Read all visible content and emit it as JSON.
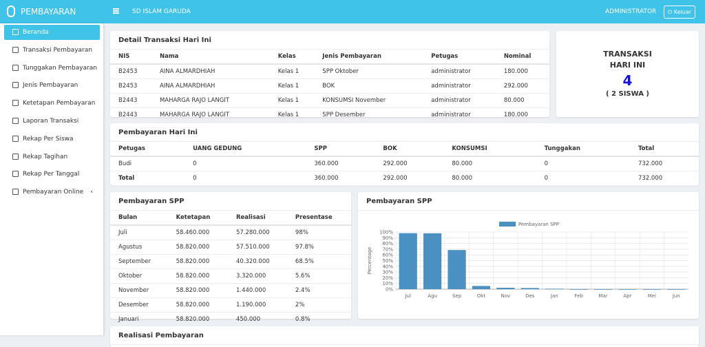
{
  "header": {
    "brand": "PEMBAYARAN",
    "school": "SD ISLAM GARUDA",
    "user": "ADMINISTRATOR",
    "logout": "Keluar"
  },
  "sidebar": {
    "menu": [
      "Beranda",
      "Transaksi Pembayaran",
      "Tunggakan Pembayaran",
      "Jenis Pembayaran",
      "Ketetapan Pembayaran",
      "Laporan Transaksi",
      "Rekap Per Siswa",
      "Rekap Tagihan",
      "Rekap Per Tanggal",
      "Pembayaran Online"
    ]
  },
  "transaksi": {
    "title": "Detail Transaksi Hari Ini",
    "columns": [
      "NIS",
      "Nama",
      "Kelas",
      "Jenis Pembayaran",
      "Petugas",
      "Nominal"
    ],
    "rows": [
      [
        "B2453",
        "AINA ALMARDHIAH",
        "Kelas 1",
        "SPP Oktober",
        "administrator",
        "180.000"
      ],
      [
        "B2453",
        "AINA ALMARDHIAH",
        "Kelas 1",
        "BOK",
        "administrator",
        "292.000"
      ],
      [
        "B2443",
        "MAHARGA RAJO LANGIT",
        "Kelas 1",
        "KONSUMSI November",
        "administrator",
        "80.000"
      ],
      [
        "B2443",
        "MAHARGA RAJO LANGIT",
        "Kelas 1",
        "SPP Desember",
        "administrator",
        "180.000"
      ]
    ]
  },
  "summary": {
    "title_line1": "TRANSAKSI",
    "title_line2": "HARI INI",
    "count": "4",
    "students": "( 2 SISWA )"
  },
  "hari_ini": {
    "title": "Pembayaran Hari Ini",
    "columns": [
      "Petugas",
      "UANG GEDUNG",
      "SPP",
      "BOK",
      "KONSUMSI",
      "Tunggakan",
      "Total"
    ],
    "rows": [
      [
        "Budi",
        "0",
        "360.000",
        "292.000",
        "80.000",
        "0",
        "732.000"
      ],
      [
        "Total",
        "0",
        "360.000",
        "292.000",
        "80.000",
        "0",
        "732.000"
      ]
    ]
  },
  "spp_table": {
    "title": "Pembayaran SPP",
    "columns": [
      "Bulan",
      "Ketetapan",
      "Realisasi",
      "Presentase"
    ],
    "rows": [
      [
        "Juli",
        "58.460.000",
        "57.280.000",
        "98%"
      ],
      [
        "Agustus",
        "58.820.000",
        "57.510.000",
        "97.8%"
      ],
      [
        "September",
        "58.820.000",
        "40.320.000",
        "68.5%"
      ],
      [
        "Oktober",
        "58.820.000",
        "3.320.000",
        "5.6%"
      ],
      [
        "November",
        "58.820.000",
        "1.440.000",
        "2.4%"
      ],
      [
        "Desember",
        "58.820.000",
        "1.190.000",
        "2%"
      ],
      [
        "Januari",
        "58.820.000",
        "450.000",
        "0.8%"
      ]
    ]
  },
  "spp_chart": {
    "type": "bar",
    "title": "Pembayaran SPP",
    "y_label": "Percentage",
    "categories": [
      "Jul",
      "Agu",
      "Sep",
      "Okt",
      "Nov",
      "Des",
      "Jan",
      "Feb",
      "Mar",
      "Apr",
      "Mei",
      "Jun"
    ],
    "series": [
      {
        "name": "Pembayaran SPP",
        "color": "#4a90c2",
        "values": [
          98,
          97.8,
          68.5,
          5.6,
          2.4,
          2,
          0.8,
          0,
          0,
          0,
          0,
          0
        ]
      }
    ],
    "ylim": [
      0,
      100
    ],
    "yticks": [
      {
        "value": 0,
        "label": "0%"
      },
      {
        "value": 10,
        "label": "10%"
      },
      {
        "value": 20,
        "label": "20%"
      },
      {
        "value": 30,
        "label": "30%"
      },
      {
        "value": 40,
        "label": "40%"
      },
      {
        "value": 50,
        "label": "50%"
      },
      {
        "value": 60,
        "label": "60%"
      },
      {
        "value": 70,
        "label": "70%"
      },
      {
        "value": 80,
        "label": "80%"
      },
      {
        "value": 90,
        "label": "90%"
      },
      {
        "value": 100,
        "label": "100%"
      }
    ],
    "grid": true
  },
  "realisasi": {
    "title": "Realisasi Pembayaran"
  }
}
